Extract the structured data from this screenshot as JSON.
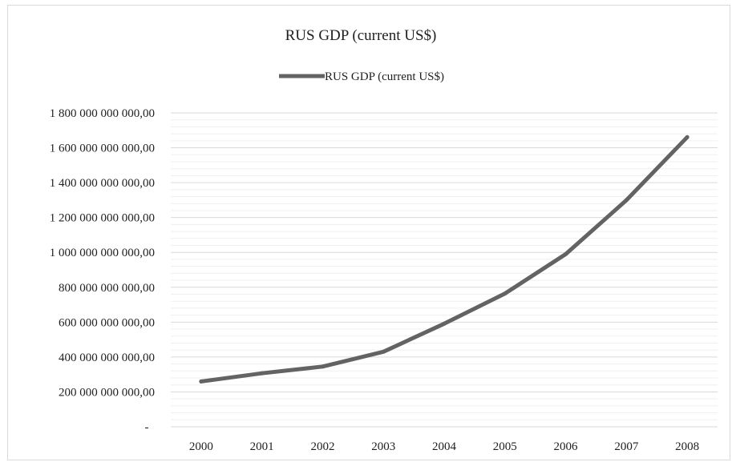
{
  "chart_data": {
    "type": "line",
    "title": "RUS GDP (current US$)",
    "legend_position": "top",
    "grid": true,
    "categories": [
      "2000",
      "2001",
      "2002",
      "2003",
      "2004",
      "2005",
      "2006",
      "2007",
      "2008"
    ],
    "series": [
      {
        "name": "RUS GDP (current US$)",
        "color": "#636363",
        "values": [
          259700000000,
          306600000000,
          345500000000,
          430300000000,
          591000000000,
          764000000000,
          989900000000,
          1299700000000,
          1660800000000
        ]
      }
    ],
    "ylim": [
      0,
      1800000000000
    ],
    "y_major_step": 200000000000,
    "y_minor_step": 40000000000,
    "y_tick_labels": [
      "-",
      "200 000 000 000,00",
      "400 000 000 000,00",
      "600 000 000 000,00",
      "800 000 000 000,00",
      "1 000 000 000 000,00",
      "1 200 000 000 000,00",
      "1 400 000 000 000,00",
      "1 600 000 000 000,00",
      "1 800 000 000 000,00"
    ]
  }
}
